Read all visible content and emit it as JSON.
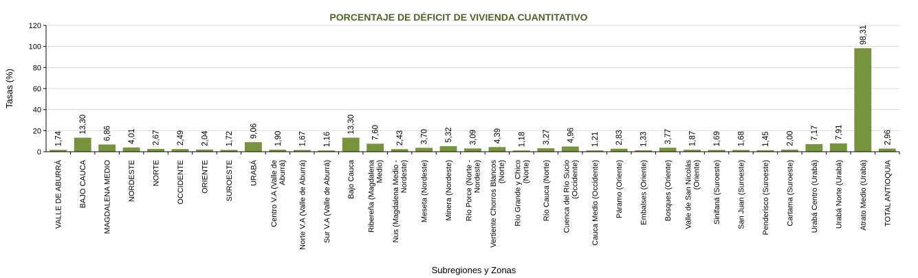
{
  "chart_data": {
    "type": "bar",
    "title": "PORCENTAJE DE DÉFICIT DE VIVIENDA CUANTITATIVO",
    "xlabel": "Subregiones y Zonas",
    "ylabel": "Tasas (%)",
    "ylim": [
      0,
      120
    ],
    "yticks": [
      0,
      20,
      40,
      60,
      80,
      100,
      120
    ],
    "grid": true,
    "legend": "none",
    "bar_color": "#77933c",
    "title_color": "#4f6228",
    "categories": [
      "VALLE DE ABURRÁ",
      "BAJO CAUCA",
      "MAGDALENA MEDIO",
      "NORDESTE",
      "NORTE",
      "OCCIDENTE",
      "ORIENTE",
      "SUROESTE",
      "URABÁ",
      "Centro V.A (Valle de Aburrá)",
      "Norte V.A (Valle de Aburrá)",
      "Sur V.A (Valle de Aburrá)",
      "Bajo Cauca",
      "Ribereña (Magdalena Medio)",
      "Nus (Magdalena Medio - Nordeste)",
      "Meseta (Nordeste)",
      "Minera (Nordeste)",
      "Río Porce (Norte - Nordeste)",
      "Vertiente Chorros Blancos (Norte)",
      "Río Grande y Chico (Norte)",
      "Río Cauca (Norte)",
      "Cuenca del Río Sucio (Occidente)",
      "Cauca Medio (Occidente)",
      "Páramo (Oriente)",
      "Embalses (Oriente)",
      "Bosques (Oriente)",
      "Valle de San Nicolás (Oriente)",
      "Sinifaná (Suroeste)",
      "San Juan (Suroeste)",
      "Penderisco (Suroeste)",
      "Cartama (Suroeste)",
      "Urabá Centro (Urabá)",
      "Urabá Norte (Urabá)",
      "Atrato Medio (Urabá)",
      "TOTAL ANTIOQUIA"
    ],
    "category_lines": [
      [
        "VALLE DE ABURRÁ"
      ],
      [
        "BAJO CAUCA"
      ],
      [
        "MAGDALENA MEDIO"
      ],
      [
        "NORDESTE"
      ],
      [
        "NORTE"
      ],
      [
        "OCCIDENTE"
      ],
      [
        "ORIENTE"
      ],
      [
        "SUROESTE"
      ],
      [
        "URABÁ"
      ],
      [
        "Centro V.A (Valle de",
        "Aburrá)"
      ],
      [
        "Norte V.A (Valle de Aburrá)"
      ],
      [
        "Sur V.A (Valle de Aburrá)"
      ],
      [
        "Bajo Cauca"
      ],
      [
        "Ribereña (Magdalena",
        "Medio)"
      ],
      [
        "Nus (Magdalena Medio -",
        "Nordeste)"
      ],
      [
        "Meseta (Nordeste)"
      ],
      [
        "Minera (Nordeste)"
      ],
      [
        "Río Porce (Norte -",
        "Nordeste)"
      ],
      [
        "Vertiente Chorros Blancos",
        "(Norte)"
      ],
      [
        "Río Grande y Chico",
        "(Norte)"
      ],
      [
        "Río Cauca (Norte)"
      ],
      [
        "Cuenca del Río Sucio",
        "(Occidente)"
      ],
      [
        "Cauca Medio (Occidente)"
      ],
      [
        "Páramo (Oriente)"
      ],
      [
        "Embalses (Oriente)"
      ],
      [
        "Bosques (Oriente)"
      ],
      [
        "Valle de San Nicolás",
        "(Oriente)"
      ],
      [
        "Sinifaná (Suroeste)"
      ],
      [
        "San Juan (Suroeste)"
      ],
      [
        "Penderisco (Suroeste)"
      ],
      [
        "Cartama (Suroeste)"
      ],
      [
        "Urabá Centro (Urabá)"
      ],
      [
        "Urabá Norte (Urabá)"
      ],
      [
        "Atrato Medio (Urabá)"
      ],
      [
        "TOTAL ANTIOQUIA"
      ]
    ],
    "values": [
      1.74,
      13.3,
      6.86,
      4.01,
      2.67,
      2.49,
      2.04,
      1.72,
      9.06,
      1.9,
      1.67,
      1.16,
      13.3,
      7.6,
      2.43,
      3.7,
      5.32,
      3.09,
      4.39,
      1.18,
      3.27,
      4.96,
      1.21,
      2.83,
      1.33,
      3.77,
      1.87,
      1.69,
      1.68,
      1.45,
      2.0,
      7.17,
      7.91,
      98.31,
      2.96
    ],
    "data_labels": [
      "1,74",
      "13,30",
      "6,86",
      "4,01",
      "2,67",
      "2,49",
      "2,04",
      "1,72",
      "9,06",
      "1,90",
      "1,67",
      "1,16",
      "13,30",
      "7,60",
      "2,43",
      "3,70",
      "5,32",
      "3,09",
      "4,39",
      "1,18",
      "3,27",
      "4,96",
      "1,21",
      "2,83",
      "1,33",
      "3,77",
      "1,87",
      "1,69",
      "1,68",
      "1,45",
      "2,00",
      "7,17",
      "7,91",
      "98,31",
      "2,96"
    ]
  }
}
